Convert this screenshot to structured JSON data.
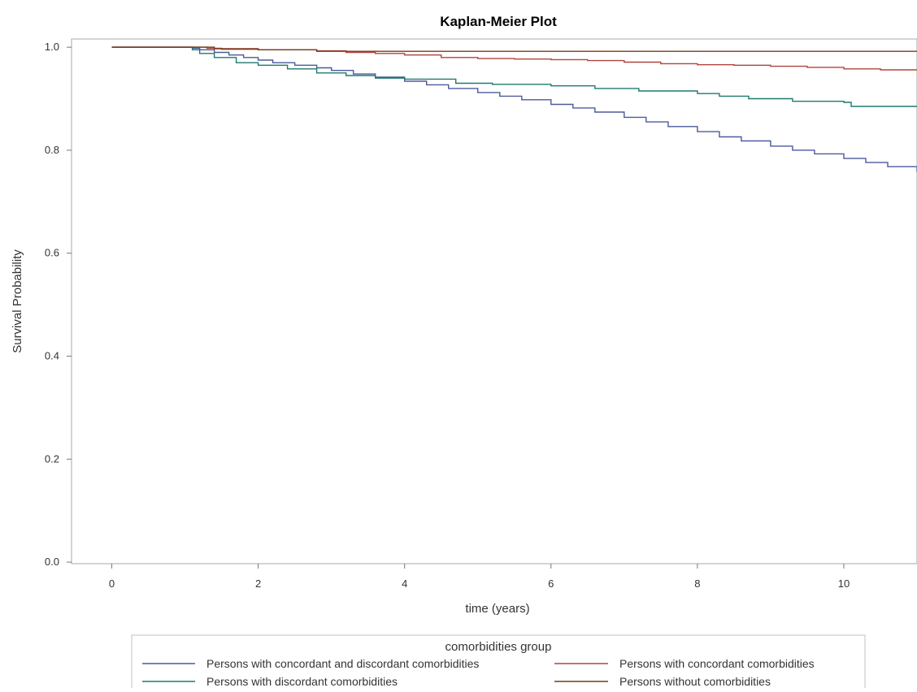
{
  "chart_data": {
    "type": "line",
    "step": true,
    "title": "Kaplan-Meier Plot",
    "xlabel": "time (years)",
    "ylabel": "Survival Probability",
    "xlim": [
      -0.55,
      11
    ],
    "ylim": [
      -0.003,
      1.016
    ],
    "x_ticks": [
      0,
      2,
      4,
      6,
      8,
      10
    ],
    "y_ticks": [
      0.0,
      0.2,
      0.4,
      0.6,
      0.8,
      1.0
    ],
    "x_tick_labels": [
      "0",
      "2",
      "4",
      "6",
      "8",
      "10"
    ],
    "y_tick_labels": [
      "0.0",
      "0.2",
      "0.4",
      "0.6",
      "0.8",
      "1.0"
    ],
    "grid": false,
    "legend_title": "comorbidities group",
    "legend_position": "bottom",
    "series": [
      {
        "name": "Persons with concordant and discordant comorbidities",
        "color": "#4a5a9c",
        "points": [
          [
            0,
            1.0
          ],
          [
            1.0,
            1.0
          ],
          [
            1.1,
            0.998
          ],
          [
            1.2,
            0.995
          ],
          [
            1.4,
            0.99
          ],
          [
            1.6,
            0.985
          ],
          [
            1.8,
            0.98
          ],
          [
            2.0,
            0.975
          ],
          [
            2.2,
            0.97
          ],
          [
            2.5,
            0.965
          ],
          [
            2.8,
            0.96
          ],
          [
            3.0,
            0.955
          ],
          [
            3.3,
            0.948
          ],
          [
            3.6,
            0.942
          ],
          [
            4.0,
            0.934
          ],
          [
            4.3,
            0.927
          ],
          [
            4.6,
            0.92
          ],
          [
            5.0,
            0.912
          ],
          [
            5.3,
            0.905
          ],
          [
            5.6,
            0.898
          ],
          [
            6.0,
            0.889
          ],
          [
            6.3,
            0.882
          ],
          [
            6.6,
            0.874
          ],
          [
            7.0,
            0.864
          ],
          [
            7.3,
            0.855
          ],
          [
            7.6,
            0.846
          ],
          [
            8.0,
            0.836
          ],
          [
            8.3,
            0.826
          ],
          [
            8.6,
            0.818
          ],
          [
            9.0,
            0.808
          ],
          [
            9.3,
            0.8
          ],
          [
            9.6,
            0.793
          ],
          [
            10.0,
            0.784
          ],
          [
            10.3,
            0.776
          ],
          [
            10.6,
            0.768
          ],
          [
            11.0,
            0.758
          ]
        ]
      },
      {
        "name": "Persons with concordant comorbidities",
        "color": "#b0443c",
        "points": [
          [
            0,
            1.0
          ],
          [
            1.0,
            1.0
          ],
          [
            1.3,
            0.998
          ],
          [
            1.5,
            0.996
          ],
          [
            2.0,
            0.995
          ],
          [
            2.8,
            0.993
          ],
          [
            3.2,
            0.99
          ],
          [
            3.6,
            0.988
          ],
          [
            4.0,
            0.985
          ],
          [
            4.5,
            0.98
          ],
          [
            5.0,
            0.978
          ],
          [
            5.5,
            0.977
          ],
          [
            6.0,
            0.976
          ],
          [
            6.5,
            0.974
          ],
          [
            7.0,
            0.971
          ],
          [
            7.5,
            0.968
          ],
          [
            8.0,
            0.966
          ],
          [
            8.5,
            0.965
          ],
          [
            9.0,
            0.963
          ],
          [
            9.5,
            0.961
          ],
          [
            10.0,
            0.958
          ],
          [
            10.5,
            0.956
          ],
          [
            11.0,
            0.956
          ]
        ]
      },
      {
        "name": "Persons with discordant comorbidities",
        "color": "#1d7a6e",
        "points": [
          [
            0,
            1.0
          ],
          [
            1.0,
            1.0
          ],
          [
            1.1,
            0.995
          ],
          [
            1.2,
            0.988
          ],
          [
            1.4,
            0.98
          ],
          [
            1.7,
            0.97
          ],
          [
            2.0,
            0.965
          ],
          [
            2.4,
            0.958
          ],
          [
            2.8,
            0.95
          ],
          [
            3.2,
            0.945
          ],
          [
            3.6,
            0.94
          ],
          [
            4.0,
            0.938
          ],
          [
            4.7,
            0.93
          ],
          [
            5.2,
            0.928
          ],
          [
            6.0,
            0.925
          ],
          [
            6.6,
            0.92
          ],
          [
            7.2,
            0.915
          ],
          [
            8.0,
            0.91
          ],
          [
            8.3,
            0.905
          ],
          [
            8.7,
            0.9
          ],
          [
            9.3,
            0.895
          ],
          [
            10.0,
            0.893
          ],
          [
            10.1,
            0.885
          ],
          [
            11.0,
            0.885
          ]
        ]
      },
      {
        "name": "Persons without comorbidities",
        "color": "#7a3a1a",
        "points": [
          [
            0,
            1.0
          ],
          [
            1.0,
            1.0
          ],
          [
            1.4,
            0.997
          ],
          [
            2.0,
            0.995
          ],
          [
            2.8,
            0.992
          ],
          [
            4.0,
            0.992
          ],
          [
            6.0,
            0.992
          ],
          [
            8.0,
            0.992
          ],
          [
            10.0,
            0.992
          ],
          [
            11.0,
            0.992
          ]
        ]
      }
    ]
  }
}
